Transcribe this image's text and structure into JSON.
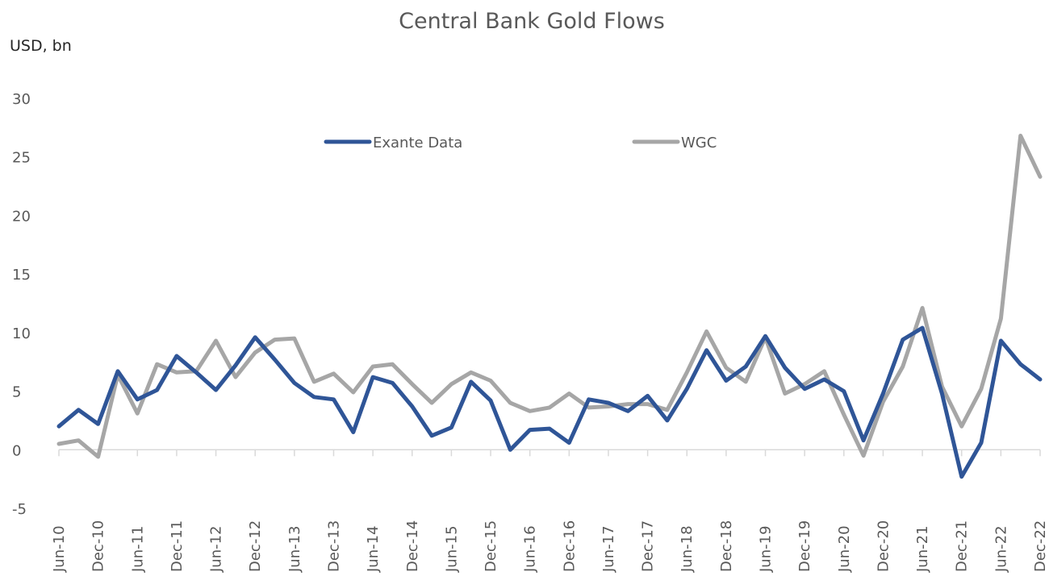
{
  "chart_data": {
    "type": "line",
    "title": "Central Bank Gold Flows",
    "ylabel": "USD, bn",
    "xlabel": "",
    "ylim": [
      -5,
      30
    ],
    "yticks": [
      -5,
      0,
      5,
      10,
      15,
      20,
      25,
      30
    ],
    "xtick_labels": [
      "Jun-10",
      "Dec-10",
      "Jun-11",
      "Dec-11",
      "Jun-12",
      "Dec-12",
      "Jun-13",
      "Dec-13",
      "Jun-14",
      "Dec-14",
      "Jun-15",
      "Dec-15",
      "Jun-16",
      "Dec-16",
      "Jun-17",
      "Dec-17",
      "Jun-18",
      "Dec-18",
      "Jun-19",
      "Dec-19",
      "Jun-20",
      "Dec-20",
      "Jun-21",
      "Dec-21",
      "Jun-22",
      "Dec-22"
    ],
    "x": [
      "Jun-10",
      "Sep-10",
      "Dec-10",
      "Mar-11",
      "Jun-11",
      "Sep-11",
      "Dec-11",
      "Mar-12",
      "Jun-12",
      "Sep-12",
      "Dec-12",
      "Mar-13",
      "Jun-13",
      "Sep-13",
      "Dec-13",
      "Mar-14",
      "Jun-14",
      "Sep-14",
      "Dec-14",
      "Mar-15",
      "Jun-15",
      "Sep-15",
      "Dec-15",
      "Mar-16",
      "Jun-16",
      "Sep-16",
      "Dec-16",
      "Mar-17",
      "Jun-17",
      "Sep-17",
      "Dec-17",
      "Mar-18",
      "Jun-18",
      "Sep-18",
      "Dec-18",
      "Mar-19",
      "Jun-19",
      "Sep-19",
      "Dec-19",
      "Mar-20",
      "Jun-20",
      "Sep-20",
      "Dec-20",
      "Mar-21",
      "Jun-21",
      "Sep-21",
      "Dec-21",
      "Mar-22",
      "Jun-22",
      "Sep-22",
      "Dec-22"
    ],
    "series": [
      {
        "name": "Exante Data",
        "color": "#2f5597",
        "values": [
          2.0,
          3.4,
          2.2,
          6.7,
          4.3,
          5.1,
          8.0,
          6.6,
          5.1,
          7.2,
          9.6,
          7.7,
          5.7,
          4.5,
          4.3,
          1.5,
          6.2,
          5.7,
          3.7,
          1.2,
          1.9,
          5.8,
          4.2,
          0.0,
          1.7,
          1.8,
          0.6,
          4.3,
          4.0,
          3.3,
          4.6,
          2.5,
          5.2,
          8.5,
          5.9,
          7.1,
          9.7,
          7.0,
          5.2,
          6.0,
          5.0,
          0.8,
          4.8,
          9.4,
          10.4,
          4.8,
          -2.3,
          0.6,
          9.3,
          7.3,
          6.0
        ]
      },
      {
        "name": "WGC",
        "color": "#a6a6a6",
        "values": [
          0.5,
          0.8,
          -0.6,
          6.4,
          3.1,
          7.3,
          6.6,
          6.7,
          9.3,
          6.2,
          8.3,
          9.4,
          9.5,
          5.8,
          6.5,
          4.9,
          7.1,
          7.3,
          5.6,
          4.0,
          5.6,
          6.6,
          5.9,
          4.0,
          3.3,
          3.6,
          4.8,
          3.6,
          3.7,
          3.9,
          3.9,
          3.4,
          6.6,
          10.1,
          7.0,
          5.8,
          9.6,
          4.8,
          5.6,
          6.7,
          3.0,
          -0.5,
          4.1,
          7.1,
          12.1,
          5.4,
          2.0,
          5.2,
          11.2,
          26.8,
          23.3
        ]
      }
    ],
    "legend_position": "top-center",
    "grid": false
  }
}
